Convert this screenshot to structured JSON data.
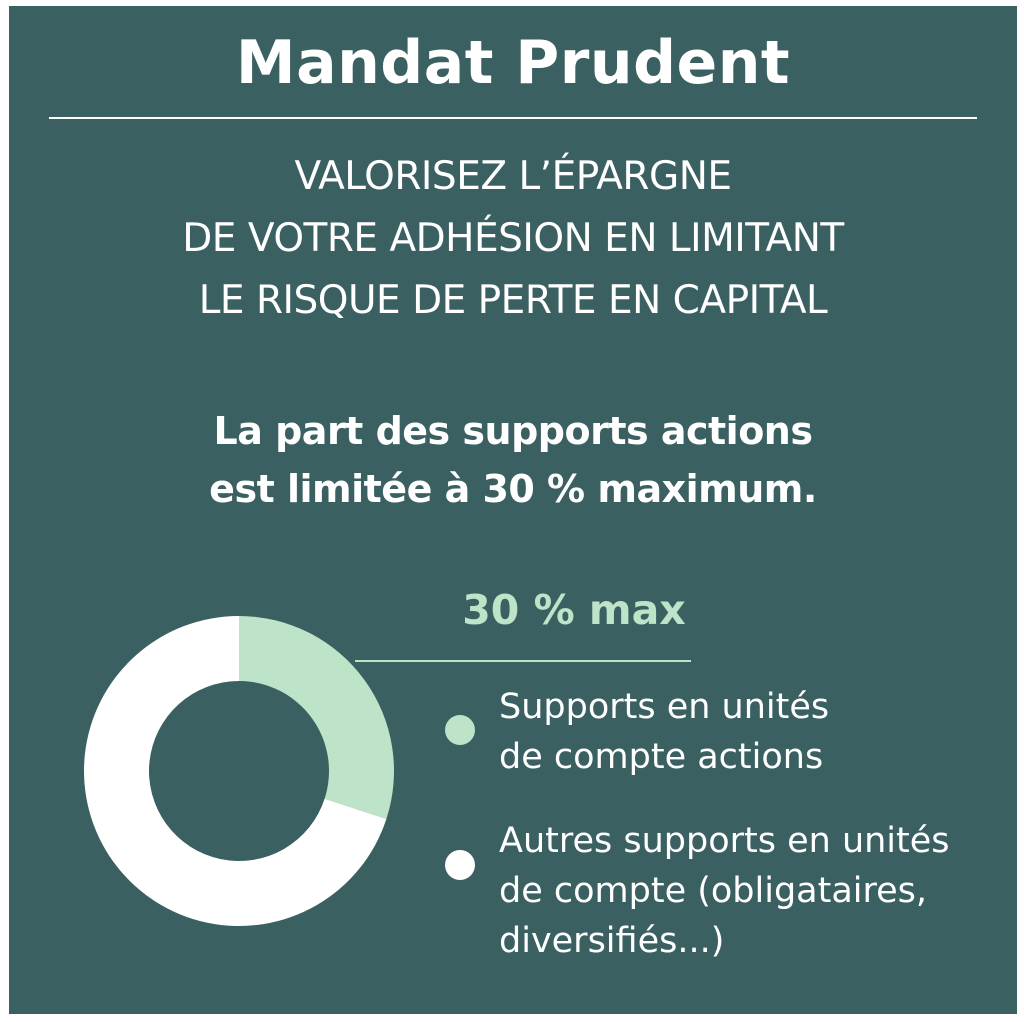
{
  "header": {
    "title": "Mandat Prudent",
    "subtitle_lines": [
      "VALORISEZ L’ÉPARGNE",
      "DE VOTRE ADHÉSION EN LIMITANT",
      "LE RISQUE DE PERTE EN CAPITAL"
    ]
  },
  "statement_lines": [
    "La part des supports actions",
    "est limitée à 30 % maximum."
  ],
  "callout": "30 % max",
  "colors": {
    "background": "#3b6062",
    "equity": "#bde3c8",
    "other": "#ffffff"
  },
  "chart_data": {
    "type": "pie",
    "donut": true,
    "title": "",
    "categories": [
      "Supports en unités de compte actions",
      "Autres supports en unités de compte (obligataires, diversifiés...)"
    ],
    "values": [
      30,
      70
    ],
    "annotation": "30 % max",
    "legend_position": "right"
  },
  "legend": [
    {
      "lines": [
        "Supports en unités",
        "de compte actions"
      ],
      "color": "#bde3c8"
    },
    {
      "lines": [
        "Autres supports en unités",
        "de compte (obligataires,",
        "diversifiés...)"
      ],
      "color": "#ffffff"
    }
  ]
}
